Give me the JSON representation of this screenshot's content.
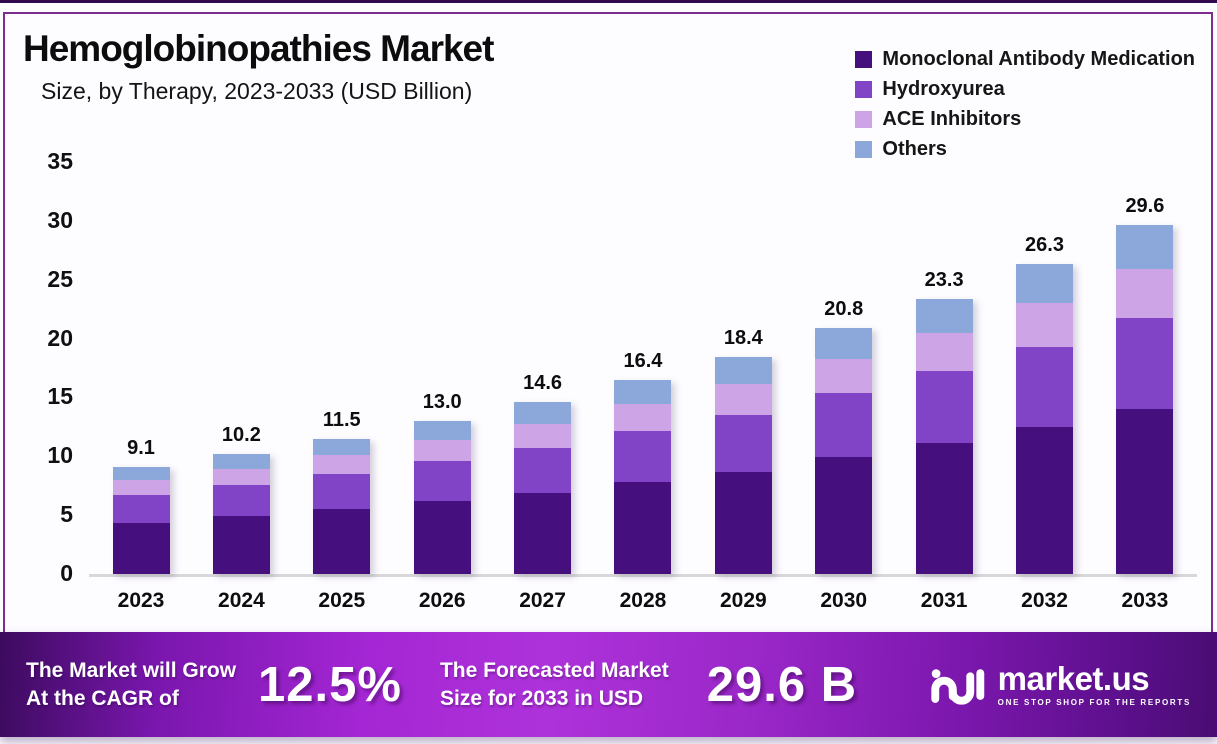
{
  "header": {
    "title": "Hemoglobinopathies Market",
    "subtitle": "Size, by Therapy, 2023-2033 (USD Billion)"
  },
  "chart_data": {
    "type": "bar",
    "stacked": true,
    "title": "Hemoglobinopathies Market Size, by Therapy, 2023-2033 (USD Billion)",
    "xlabel": "",
    "ylabel": "",
    "ylim": [
      0,
      35
    ],
    "yticks": [
      0,
      5,
      10,
      15,
      20,
      25,
      30,
      35
    ],
    "grid": false,
    "legend_position": "top-right",
    "categories": [
      "2023",
      "2024",
      "2025",
      "2026",
      "2027",
      "2028",
      "2029",
      "2030",
      "2031",
      "2032",
      "2033"
    ],
    "totals": [
      "9.1",
      "10.2",
      "11.5",
      "13.0",
      "14.6",
      "16.4",
      "18.4",
      "20.8",
      "23.3",
      "26.3",
      "29.6"
    ],
    "series": [
      {
        "name": "Monoclonal Antibody Medication",
        "color": "#45107d",
        "values": [
          4.3,
          4.9,
          5.5,
          6.2,
          6.9,
          7.8,
          8.7,
          9.9,
          11.1,
          12.5,
          14.0
        ]
      },
      {
        "name": "Hydroxyurea",
        "color": "#8144c6",
        "values": [
          2.4,
          2.6,
          3.0,
          3.4,
          3.8,
          4.3,
          4.8,
          5.4,
          6.1,
          6.8,
          7.7
        ]
      },
      {
        "name": "ACE Inhibitors",
        "color": "#cda4e6",
        "values": [
          1.3,
          1.4,
          1.6,
          1.8,
          2.0,
          2.3,
          2.6,
          2.9,
          3.2,
          3.7,
          4.2
        ]
      },
      {
        "name": "Others",
        "color": "#8ca8da",
        "values": [
          1.1,
          1.3,
          1.4,
          1.6,
          1.9,
          2.0,
          2.3,
          2.6,
          2.9,
          3.3,
          3.7
        ]
      }
    ]
  },
  "banner": {
    "cagr_line1": "The Market will Grow",
    "cagr_line2": "At the CAGR of",
    "cagr_value": "12.5%",
    "forecast_line1": "The Forecasted Market",
    "forecast_line2": "Size for 2033 in USD",
    "forecast_value": "29.6 B",
    "brand_name": "market.us",
    "brand_tagline": "ONE STOP SHOP FOR THE REPORTS"
  },
  "colors": {
    "frame_border": "#7c2d8f",
    "banner_left": "#3c0b5e",
    "banner_center": "#ae32da",
    "banner_right": "#4a0c73"
  }
}
